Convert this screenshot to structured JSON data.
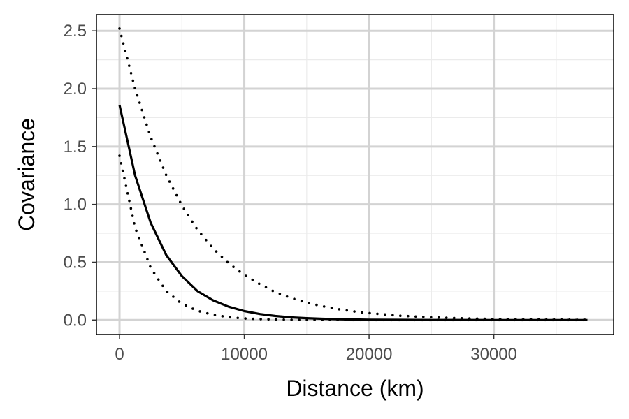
{
  "chart_data": {
    "type": "line",
    "title": "",
    "xlabel": "Distance (km)",
    "ylabel": "Covariance",
    "xlim": [
      -1850,
      39600
    ],
    "ylim": [
      -0.125,
      2.64
    ],
    "x_ticks": [
      0,
      10000,
      20000,
      30000
    ],
    "x_tick_labels": [
      "0",
      "10000",
      "20000",
      "30000"
    ],
    "x_minor_ticks": [
      5000,
      15000,
      25000,
      35000
    ],
    "y_ticks": [
      0.0,
      0.5,
      1.0,
      1.5,
      2.0,
      2.5
    ],
    "y_tick_labels": [
      "0.0",
      "0.5",
      "1.0",
      "1.5",
      "2.0",
      "2.5"
    ],
    "y_minor_ticks": [
      0.25,
      0.75,
      1.25,
      1.75,
      2.25
    ],
    "grid": true,
    "legend": "none",
    "series": [
      {
        "style": "solid",
        "color": "#000000",
        "x": [
          0,
          1250,
          2500,
          3750,
          5000,
          6250,
          7500,
          8750,
          10000,
          11250,
          12500,
          13750,
          15000,
          16250,
          17500,
          18750,
          20000,
          22500,
          25000,
          27500,
          30000,
          32500,
          35000,
          37500
        ],
        "values": [
          1.86,
          1.25,
          0.84,
          0.56,
          0.38,
          0.25,
          0.17,
          0.115,
          0.077,
          0.052,
          0.035,
          0.023,
          0.016,
          0.011,
          0.007,
          0.005,
          0.003,
          0.0015,
          0.0007,
          0.0003,
          0.0001,
          0.0,
          0.0,
          0.0
        ]
      },
      {
        "style": "dotted",
        "color": "#000000",
        "x": [
          0,
          1250,
          2500,
          3750,
          5000,
          6250,
          7500,
          8750,
          10000,
          11250,
          12500,
          13750,
          15000,
          16250,
          17500,
          18750,
          20000,
          22500,
          25000,
          27500,
          30000,
          32500,
          35000,
          37500
        ],
        "values": [
          2.52,
          2.0,
          1.58,
          1.25,
          0.99,
          0.78,
          0.62,
          0.49,
          0.39,
          0.31,
          0.24,
          0.19,
          0.15,
          0.12,
          0.095,
          0.075,
          0.06,
          0.037,
          0.024,
          0.015,
          0.009,
          0.006,
          0.004,
          0.002
        ]
      },
      {
        "style": "dotted",
        "color": "#000000",
        "x": [
          0,
          1250,
          2500,
          3750,
          5000,
          6250,
          7500,
          8750,
          10000,
          11250,
          12500,
          13750,
          15000,
          16250,
          17500,
          18750,
          20000,
          22500,
          25000,
          27500,
          30000,
          32500,
          35000,
          37500
        ],
        "values": [
          1.42,
          0.8,
          0.45,
          0.25,
          0.14,
          0.08,
          0.045,
          0.025,
          0.014,
          0.008,
          0.0045,
          0.0025,
          0.0014,
          0.0008,
          0.0004,
          0.0002,
          0.0001,
          0.0,
          0.0,
          0.0,
          0.0,
          0.0,
          0.0,
          0.0
        ]
      }
    ],
    "colors": {
      "panel_border": "#000000",
      "major_grid": "#d3d3d3",
      "minor_grid": "#ebebeb",
      "tick_label": "#4d4d4d",
      "axis_title": "#000000"
    }
  }
}
